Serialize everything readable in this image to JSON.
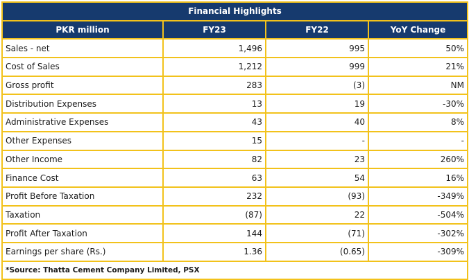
{
  "title": "Financial Highlights",
  "headers": [
    "PKR million",
    "FY23",
    "FY22",
    "YoY Change"
  ],
  "rows": [
    {
      "label": "Sales - net",
      "fy23": "1,496",
      "fy22": "995",
      "yoy": "50%"
    },
    {
      "label": "Cost of Sales",
      "fy23": "1,212",
      "fy22": "999",
      "yoy": "21%"
    },
    {
      "label": "Gross profit",
      "fy23": "283",
      "fy22": "(3)",
      "yoy": "NM"
    },
    {
      "label": "Distribution Expenses",
      "fy23": "13",
      "fy22": "19",
      "yoy": "-30%"
    },
    {
      "label": "Administrative Expenses",
      "fy23": "43",
      "fy22": "40",
      "yoy": "8%"
    },
    {
      "label": "Other Expenses",
      "fy23": "15",
      "fy22": "-",
      "yoy": "-"
    },
    {
      "label": "Other Income",
      "fy23": "82",
      "fy22": "23",
      "yoy": "260%"
    },
    {
      "label": "Finance Cost",
      "fy23": "63",
      "fy22": "54",
      "yoy": "16%"
    },
    {
      "label": "Profit Before Taxation",
      "fy23": "232",
      "fy22": "(93)",
      "yoy": "-349%"
    },
    {
      "label": "Taxation",
      "fy23": "(87)",
      "fy22": "22",
      "yoy": "-504%"
    },
    {
      "label": "Profit After Taxation",
      "fy23": "144",
      "fy22": "(71)",
      "yoy": "-302%"
    },
    {
      "label": "Earnings per share (Rs.)",
      "fy23": "1.36",
      "fy22": "(0.65)",
      "yoy": "-309%"
    }
  ],
  "source": "*Source: Thatta Cement Company Limited, PSX",
  "colors": {
    "header_bg": "#163a6e",
    "border": "#f2c21b",
    "header_text": "#ffffff"
  }
}
